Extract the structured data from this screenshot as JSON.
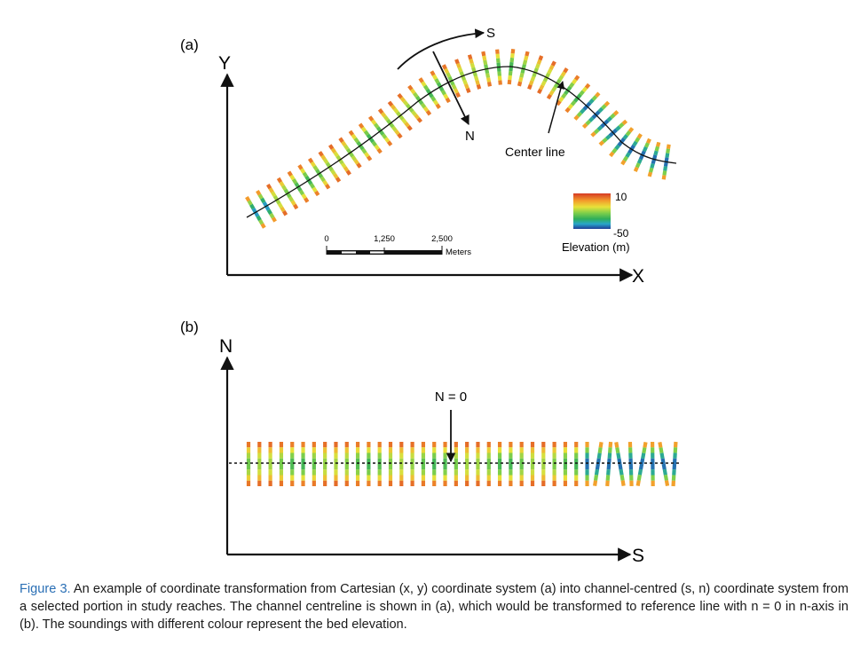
{
  "panel_a": {
    "label": "(a)",
    "y_axis": "Y",
    "x_axis": "X",
    "s_arrow": "S",
    "n_arrow": "N",
    "center_line": "Center line",
    "scale_bar": {
      "ticks": [
        "0",
        "1,250",
        "2,500"
      ],
      "unit": "Meters"
    },
    "legend": {
      "max": "10",
      "min": "-50",
      "title": "Elevation (m)"
    }
  },
  "panel_b": {
    "label": "(b)",
    "y_axis": "N",
    "x_axis": "S",
    "n_zero": "N = 0"
  },
  "colors": {
    "deep": "#1f3c96",
    "mid": "#2fae5a",
    "shallow": "#d63a24",
    "caption_label": "#2a6fb5"
  },
  "caption": {
    "label": "Figure 3.",
    "text": "An example of coordinate transformation from Cartesian (x, y) coordinate system (a) into channel-centred (s, n) coordinate system from a selected portion in study reaches. The channel centreline is shown in (a), which would be transformed to reference line with n = 0 in n-axis in (b). The soundings with different colour represent the bed elevation."
  }
}
